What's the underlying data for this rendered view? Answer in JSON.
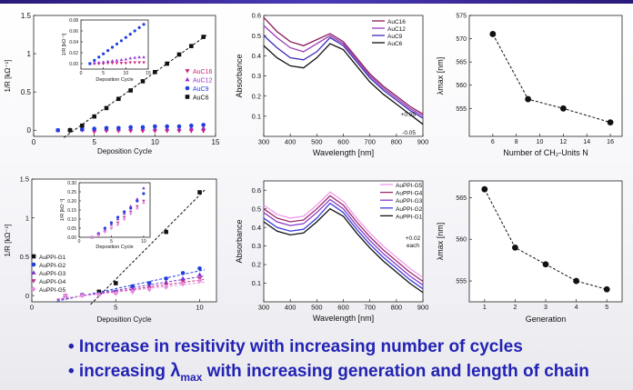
{
  "bullets": {
    "b1": "• Increase in resitivity with increasing number of cycles",
    "b2_pre": "• increasing ",
    "b2_sym": "λ",
    "b2_sub": "max",
    "b2_post": " with increasing generation and length of chain"
  },
  "accent_color": "#2323b4",
  "chart_data": [
    {
      "id": "c1",
      "type": "scatter",
      "xlabel": "Deposition Cycle",
      "ylabel": "1/R [kΩ⁻¹]",
      "xlim": [
        0,
        15
      ],
      "ylim": [
        -0.08,
        1.5
      ],
      "xticks": [
        0,
        5,
        10,
        15
      ],
      "yticks": [
        0.0,
        0.5,
        1.0,
        1.5
      ],
      "legend_position": "right",
      "series": [
        {
          "name": "AuC16",
          "color": "#cc2277",
          "marker": "tri-down",
          "x": [
            2,
            3,
            4,
            5,
            6,
            7,
            8,
            9,
            10,
            11,
            12,
            13,
            14
          ],
          "y": [
            0.0,
            -0.01,
            0.0,
            -0.02,
            -0.01,
            -0.01,
            -0.01,
            -0.01,
            -0.01,
            -0.01,
            -0.01,
            -0.01,
            -0.01
          ]
        },
        {
          "name": "AuC12",
          "color": "#9933cc",
          "marker": "tri-up",
          "x": [
            2,
            3,
            4,
            5,
            6,
            7,
            8,
            9,
            10,
            11,
            12,
            13,
            14
          ],
          "y": [
            0.0,
            0.01,
            0.01,
            0.01,
            0.01,
            0.01,
            0.02,
            0.02,
            0.02,
            0.02,
            0.02,
            0.03,
            0.03
          ]
        },
        {
          "name": "AuC9",
          "color": "#1f3fe0",
          "marker": "circle",
          "x": [
            2,
            3,
            4,
            5,
            6,
            7,
            8,
            9,
            10,
            11,
            12,
            13,
            14
          ],
          "y": [
            0.0,
            0.0,
            0.01,
            0.02,
            0.03,
            0.03,
            0.04,
            0.04,
            0.05,
            0.05,
            0.05,
            0.06,
            0.07
          ]
        },
        {
          "name": "AuC6",
          "color": "#111111",
          "marker": "square",
          "fit": true,
          "x": [
            3,
            4,
            5,
            6,
            7,
            8,
            9,
            10,
            11,
            12,
            13,
            14
          ],
          "y": [
            0.0,
            0.06,
            0.18,
            0.29,
            0.41,
            0.52,
            0.64,
            0.76,
            0.87,
            0.99,
            1.1,
            1.22
          ]
        }
      ],
      "inset": {
        "xlabel": "Deposition Cycle",
        "ylabel": "1/R [kΩ⁻¹]",
        "xlim": [
          0,
          15
        ],
        "ylim": [
          -0.01,
          0.08
        ],
        "xticks": [
          0,
          5,
          10,
          15
        ],
        "yticks": [
          0.0,
          0.02,
          0.04,
          0.06,
          0.08
        ],
        "series": [
          {
            "name": "AuC16",
            "color": "#cc2277",
            "marker": "tri-down",
            "x": [
              2,
              3,
              4,
              5,
              6,
              7,
              8,
              9,
              10,
              11,
              12,
              13,
              14
            ],
            "y": [
              0.0,
              0.0,
              0.0,
              0.0,
              0.001,
              0.001,
              0.001,
              0.001,
              0.001,
              0.002,
              0.002,
              0.002,
              0.002
            ]
          },
          {
            "name": "AuC12",
            "color": "#9933cc",
            "marker": "tri-up",
            "x": [
              2,
              3,
              4,
              5,
              6,
              7,
              8,
              9,
              10,
              11,
              12,
              13,
              14
            ],
            "y": [
              0.0,
              0.001,
              0.002,
              0.003,
              0.004,
              0.005,
              0.006,
              0.007,
              0.008,
              0.01,
              0.011,
              0.012,
              0.012
            ]
          },
          {
            "name": "AuC9",
            "color": "#1f3fe0",
            "marker": "circle",
            "x": [
              2,
              3,
              4,
              5,
              6,
              7,
              8,
              9,
              10,
              11,
              12,
              13,
              14
            ],
            "y": [
              0.0,
              0.006,
              0.012,
              0.018,
              0.024,
              0.03,
              0.036,
              0.042,
              0.048,
              0.054,
              0.06,
              0.066,
              0.072
            ]
          }
        ]
      }
    },
    {
      "id": "c2",
      "type": "line",
      "xlabel": "Wavelength [nm]",
      "ylabel": "Absorbance",
      "xlim": [
        300,
        900
      ],
      "ylim": [
        0.0,
        0.6
      ],
      "xticks": [
        300,
        400,
        500,
        600,
        700,
        800,
        900
      ],
      "yticks": [
        0.1,
        0.2,
        0.3,
        0.4,
        0.5,
        0.6
      ],
      "legend_position": "top-right",
      "annotations": [
        "+0.05",
        "-0.05"
      ],
      "x": [
        300,
        350,
        400,
        450,
        500,
        550,
        600,
        650,
        700,
        750,
        800,
        850,
        900
      ],
      "series": [
        {
          "name": "AuC16",
          "color": "#8b1a5a",
          "y": [
            0.59,
            0.52,
            0.47,
            0.45,
            0.48,
            0.51,
            0.47,
            0.39,
            0.31,
            0.25,
            0.2,
            0.15,
            0.11
          ]
        },
        {
          "name": "AuC12",
          "color": "#9a3ab8",
          "y": [
            0.55,
            0.49,
            0.44,
            0.42,
            0.46,
            0.5,
            0.46,
            0.38,
            0.3,
            0.24,
            0.19,
            0.14,
            0.1
          ]
        },
        {
          "name": "AuC9",
          "color": "#3b2db8",
          "y": [
            0.5,
            0.44,
            0.39,
            0.38,
            0.42,
            0.49,
            0.45,
            0.37,
            0.29,
            0.23,
            0.18,
            0.13,
            0.09
          ]
        },
        {
          "name": "AuC6",
          "color": "#111111",
          "y": [
            0.45,
            0.39,
            0.35,
            0.34,
            0.39,
            0.46,
            0.43,
            0.35,
            0.27,
            0.21,
            0.16,
            0.11,
            0.06
          ]
        }
      ]
    },
    {
      "id": "c3",
      "type": "line",
      "xlabel": "Number of CH₂-Units N",
      "ylabel": "λmax [nm]",
      "xlim": [
        4,
        17
      ],
      "ylim": [
        549,
        575
      ],
      "xticks": [
        6,
        8,
        10,
        12,
        14,
        16
      ],
      "yticks": [
        555,
        560,
        565,
        570,
        575
      ],
      "series": [
        {
          "name": "",
          "color": "#111111",
          "x": [
            6,
            9,
            12,
            16
          ],
          "y": [
            571,
            557,
            555,
            552
          ]
        }
      ]
    },
    {
      "id": "c4",
      "type": "scatter",
      "xlabel": "Deposition Cycle",
      "ylabel": "1/R [kΩ⁻¹]",
      "xlim": [
        0,
        11
      ],
      "ylim": [
        -0.08,
        1.5
      ],
      "xticks": [
        0,
        5,
        10
      ],
      "yticks": [
        0.0,
        0.5,
        1.0,
        1.5
      ],
      "legend_position": "left",
      "series": [
        {
          "name": "AuPPI-G1",
          "color": "#111111",
          "marker": "square",
          "fit": true,
          "x": [
            4,
            5,
            8,
            10
          ],
          "y": [
            0.05,
            0.16,
            0.82,
            1.33
          ]
        },
        {
          "name": "AuPPI-G2",
          "color": "#1f3fe0",
          "marker": "circle",
          "fit": true,
          "x": [
            2,
            3,
            4,
            5,
            6,
            7,
            8,
            9,
            10
          ],
          "y": [
            0.0,
            0.01,
            0.02,
            0.05,
            0.12,
            0.16,
            0.22,
            0.29,
            0.35
          ]
        },
        {
          "name": "AuPPI-G3",
          "color": "#7b2fd0",
          "marker": "tri-up",
          "fit": true,
          "x": [
            2,
            3,
            4,
            5,
            6,
            7,
            8,
            9,
            10
          ],
          "y": [
            0.0,
            0.01,
            0.02,
            0.04,
            0.08,
            0.12,
            0.17,
            0.22,
            0.27
          ]
        },
        {
          "name": "AuPPI-G4",
          "color": "#c22b8a",
          "marker": "tri-down",
          "fit": true,
          "x": [
            2,
            3,
            4,
            5,
            6,
            7,
            8,
            9,
            10
          ],
          "y": [
            0.0,
            0.0,
            0.01,
            0.03,
            0.06,
            0.1,
            0.14,
            0.18,
            0.22
          ]
        },
        {
          "name": "AuPPI-G5",
          "color": "#e890e0",
          "marker": "diamond",
          "fit": true,
          "x": [
            2,
            3,
            4,
            5,
            6,
            7,
            8,
            9,
            10
          ],
          "y": [
            0.0,
            0.0,
            0.01,
            0.03,
            0.05,
            0.08,
            0.11,
            0.15,
            0.19
          ]
        }
      ],
      "inset": {
        "xlabel": "Deposition Cycle",
        "ylabel": "1/R [kΩ⁻¹]",
        "xlim": [
          0,
          11
        ],
        "ylim": [
          0.0,
          0.3
        ],
        "xticks": [
          0,
          5,
          10
        ],
        "yticks": [
          0.0,
          0.05,
          0.1,
          0.15,
          0.2,
          0.25,
          0.3
        ],
        "series": [
          {
            "name": "AuPPI-G2",
            "color": "#1f3fe0",
            "marker": "circle",
            "x": [
              2,
              3,
              4,
              5,
              6,
              7,
              8,
              9,
              10
            ],
            "y": [
              0.0,
              0.02,
              0.05,
              0.08,
              0.11,
              0.14,
              0.16,
              0.2,
              0.24
            ]
          },
          {
            "name": "AuPPI-G3",
            "color": "#7b2fd0",
            "marker": "tri-up",
            "x": [
              2,
              3,
              4,
              5,
              6,
              7,
              8,
              9,
              10
            ],
            "y": [
              0.0,
              0.02,
              0.04,
              0.07,
              0.1,
              0.13,
              0.17,
              0.21,
              0.27
            ]
          },
          {
            "name": "AuPPI-G4",
            "color": "#c22b8a",
            "marker": "tri-down",
            "x": [
              2,
              3,
              4,
              5,
              6,
              7,
              8,
              9,
              10
            ],
            "y": [
              0.0,
              0.01,
              0.03,
              0.05,
              0.08,
              0.11,
              0.14,
              0.17,
              0.2
            ]
          },
          {
            "name": "AuPPI-G5",
            "color": "#e890e0",
            "marker": "diamond",
            "x": [
              2,
              3,
              4,
              5,
              6,
              7,
              8,
              9,
              10
            ],
            "y": [
              0.0,
              0.01,
              0.03,
              0.05,
              0.07,
              0.1,
              0.13,
              0.16,
              0.19
            ]
          }
        ]
      }
    },
    {
      "id": "c5",
      "type": "line",
      "xlabel": "Wavelength [nm]",
      "ylabel": "Absorbance",
      "xlim": [
        300,
        900
      ],
      "ylim": [
        0.0,
        0.65
      ],
      "xticks": [
        300,
        400,
        500,
        600,
        700,
        800,
        900
      ],
      "yticks": [
        0.1,
        0.2,
        0.3,
        0.4,
        0.5,
        0.6
      ],
      "legend_position": "top-right",
      "annotations": [
        "+0.02",
        "each"
      ],
      "x": [
        300,
        350,
        400,
        450,
        500,
        550,
        600,
        650,
        700,
        750,
        800,
        850,
        900
      ],
      "series": [
        {
          "name": "AuPPI-G5",
          "color": "#ee99ee",
          "y": [
            0.52,
            0.47,
            0.45,
            0.46,
            0.52,
            0.59,
            0.54,
            0.45,
            0.37,
            0.3,
            0.24,
            0.18,
            0.13
          ]
        },
        {
          "name": "AuPPI-G4",
          "color": "#9a2a6a",
          "y": [
            0.5,
            0.45,
            0.43,
            0.44,
            0.5,
            0.57,
            0.52,
            0.43,
            0.35,
            0.28,
            0.22,
            0.16,
            0.11
          ]
        },
        {
          "name": "AuPPI-G3",
          "color": "#8a3ac8",
          "y": [
            0.48,
            0.43,
            0.41,
            0.42,
            0.48,
            0.55,
            0.5,
            0.41,
            0.33,
            0.26,
            0.2,
            0.14,
            0.09
          ]
        },
        {
          "name": "AuPPI-G2",
          "color": "#3b3be0",
          "y": [
            0.45,
            0.4,
            0.38,
            0.39,
            0.45,
            0.53,
            0.48,
            0.39,
            0.31,
            0.24,
            0.18,
            0.12,
            0.07
          ]
        },
        {
          "name": "AuPPI-G1",
          "color": "#111111",
          "y": [
            0.43,
            0.38,
            0.36,
            0.37,
            0.43,
            0.5,
            0.46,
            0.37,
            0.29,
            0.22,
            0.16,
            0.1,
            0.05
          ]
        }
      ]
    },
    {
      "id": "c6",
      "type": "line",
      "xlabel": "Generation",
      "ylabel": "λmax [nm]",
      "xlim": [
        0.5,
        5.5
      ],
      "ylim": [
        552.5,
        567
      ],
      "xticks": [
        1,
        2,
        3,
        4,
        5
      ],
      "yticks": [
        555,
        560,
        565
      ],
      "series": [
        {
          "name": "",
          "color": "#111111",
          "x": [
            1,
            2,
            3,
            4,
            5
          ],
          "y": [
            566,
            559,
            557,
            555,
            554
          ]
        }
      ]
    }
  ]
}
